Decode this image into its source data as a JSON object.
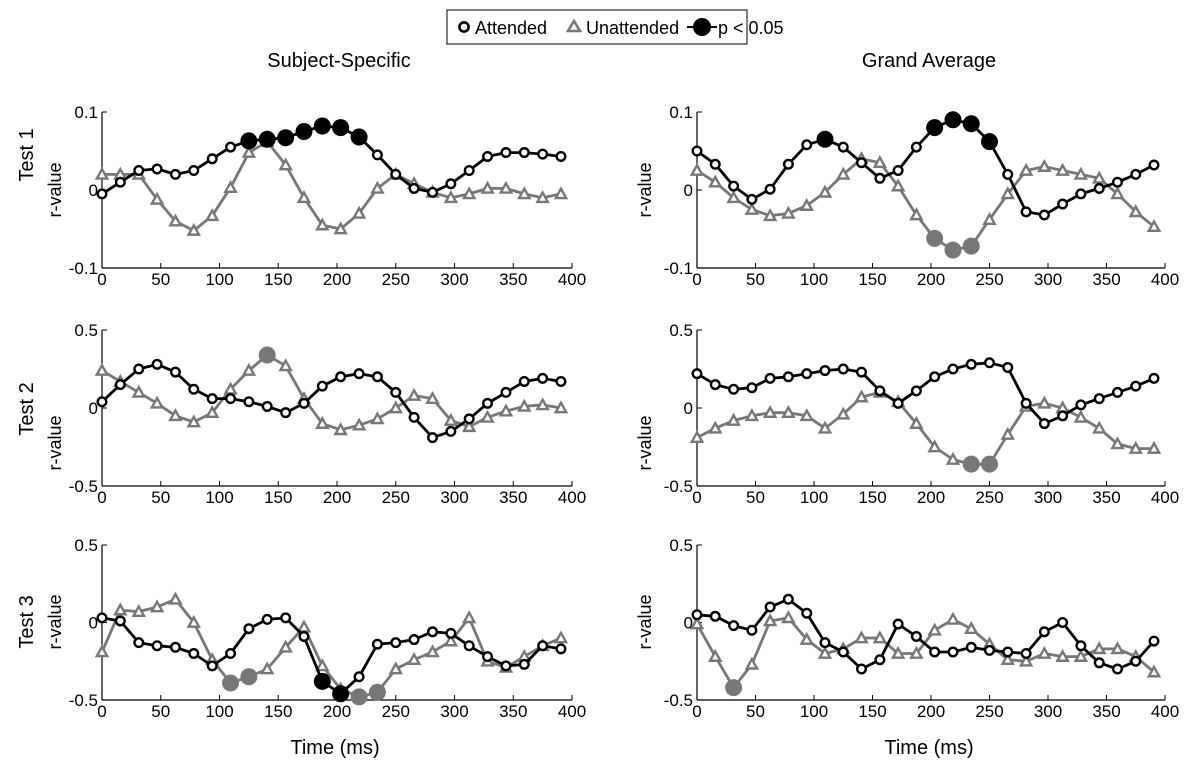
{
  "legend": {
    "attended": "Attended",
    "unattended": "Unattended",
    "significant": "p < 0.05"
  },
  "columns": [
    "Subject-Specific",
    "Grand Average"
  ],
  "rows": [
    "Test 1",
    "Test 2",
    "Test 3"
  ],
  "xlabel": "Time (ms)",
  "ylabel": "r-value",
  "colors": {
    "attended": "#000000",
    "unattended": "#777777"
  },
  "chart_data": [
    {
      "type": "line",
      "row": "Test 1",
      "column": "Subject-Specific",
      "ylim": [
        -0.1,
        0.1
      ],
      "yticks": [
        "-0.1",
        "0",
        "0.1"
      ],
      "xlim": [
        0,
        400
      ],
      "xticks": [
        "0",
        "50",
        "100",
        "150",
        "200",
        "250",
        "300",
        "350",
        "400"
      ],
      "x": [
        0,
        15.6,
        31.3,
        46.9,
        62.5,
        78.1,
        93.8,
        109.4,
        125,
        140.6,
        156.3,
        171.9,
        187.5,
        203.1,
        218.8,
        234.4,
        250,
        265.6,
        281.3,
        296.9,
        312.5,
        328.1,
        343.8,
        359.4,
        375,
        390.6
      ],
      "series": [
        {
          "name": "Attended",
          "values": [
            -0.005,
            0.01,
            0.025,
            0.027,
            0.02,
            0.025,
            0.04,
            0.055,
            0.063,
            0.065,
            0.067,
            0.075,
            0.082,
            0.08,
            0.068,
            0.045,
            0.02,
            0.002,
            -0.003,
            0.008,
            0.025,
            0.043,
            0.048,
            0.048,
            0.046,
            0.043
          ],
          "significant": [
            8,
            9,
            10,
            11,
            12,
            13,
            14
          ]
        },
        {
          "name": "Unattended",
          "values": [
            0.02,
            0.02,
            0.02,
            -0.012,
            -0.04,
            -0.052,
            -0.033,
            0.003,
            0.048,
            0.062,
            0.032,
            -0.01,
            -0.045,
            -0.05,
            -0.03,
            0.002,
            0.02,
            0.008,
            -0.003,
            -0.01,
            -0.005,
            0.002,
            0.002,
            -0.005,
            -0.01,
            -0.005
          ],
          "significant": []
        }
      ]
    },
    {
      "type": "line",
      "row": "Test 1",
      "column": "Grand Average",
      "ylim": [
        -0.1,
        0.1
      ],
      "yticks": [
        "-0.1",
        "0",
        "0.1"
      ],
      "xlim": [
        0,
        400
      ],
      "xticks": [
        "0",
        "50",
        "100",
        "150",
        "200",
        "250",
        "300",
        "350",
        "400"
      ],
      "x": [
        0,
        15.6,
        31.3,
        46.9,
        62.5,
        78.1,
        93.8,
        109.4,
        125,
        140.6,
        156.3,
        171.9,
        187.5,
        203.1,
        218.8,
        234.4,
        250,
        265.6,
        281.3,
        296.9,
        312.5,
        328.1,
        343.8,
        359.4,
        375,
        390.6
      ],
      "series": [
        {
          "name": "Attended",
          "values": [
            0.05,
            0.033,
            0.005,
            -0.012,
            0.001,
            0.033,
            0.058,
            0.065,
            0.055,
            0.035,
            0.015,
            0.025,
            0.055,
            0.08,
            0.09,
            0.085,
            0.062,
            0.02,
            -0.028,
            -0.032,
            -0.018,
            -0.005,
            0.002,
            0.01,
            0.02,
            0.032
          ],
          "significant": [
            7,
            13,
            14,
            15,
            16
          ]
        },
        {
          "name": "Unattended",
          "values": [
            0.025,
            0.01,
            -0.01,
            -0.025,
            -0.033,
            -0.03,
            -0.02,
            -0.003,
            0.02,
            0.04,
            0.035,
            0.005,
            -0.032,
            -0.062,
            -0.077,
            -0.072,
            -0.038,
            -0.005,
            0.025,
            0.03,
            0.025,
            0.02,
            0.015,
            -0.005,
            -0.028,
            -0.047
          ],
          "significant": [
            13,
            14,
            15
          ]
        }
      ]
    },
    {
      "type": "line",
      "row": "Test 2",
      "column": "Subject-Specific",
      "ylim": [
        -0.5,
        0.5
      ],
      "yticks": [
        "-0.5",
        "0",
        "0.5"
      ],
      "xlim": [
        0,
        400
      ],
      "xticks": [
        "0",
        "50",
        "100",
        "150",
        "200",
        "250",
        "300",
        "350",
        "400"
      ],
      "x": [
        0,
        15.6,
        31.3,
        46.9,
        62.5,
        78.1,
        93.8,
        109.4,
        125,
        140.6,
        156.3,
        171.9,
        187.5,
        203.1,
        218.8,
        234.4,
        250,
        265.6,
        281.3,
        296.9,
        312.5,
        328.1,
        343.8,
        359.4,
        375,
        390.6
      ],
      "series": [
        {
          "name": "Attended",
          "values": [
            0.04,
            0.15,
            0.25,
            0.28,
            0.23,
            0.12,
            0.06,
            0.06,
            0.04,
            0.01,
            -0.03,
            0.03,
            0.14,
            0.2,
            0.22,
            0.2,
            0.1,
            -0.06,
            -0.19,
            -0.15,
            -0.07,
            0.03,
            0.1,
            0.17,
            0.19,
            0.17
          ],
          "significant": []
        },
        {
          "name": "Unattended",
          "values": [
            0.24,
            0.17,
            0.1,
            0.03,
            -0.05,
            -0.09,
            -0.03,
            0.12,
            0.24,
            0.34,
            0.27,
            0.06,
            -0.1,
            -0.14,
            -0.11,
            -0.07,
            0.0,
            0.08,
            0.06,
            -0.08,
            -0.12,
            -0.06,
            -0.02,
            0.01,
            0.02,
            0.0
          ],
          "significant": [
            9
          ]
        }
      ]
    },
    {
      "type": "line",
      "row": "Test 2",
      "column": "Grand Average",
      "ylim": [
        -0.5,
        0.5
      ],
      "yticks": [
        "-0.5",
        "0",
        "0.5"
      ],
      "xlim": [
        0,
        400
      ],
      "xticks": [
        "0",
        "50",
        "100",
        "150",
        "200",
        "250",
        "300",
        "350",
        "400"
      ],
      "x": [
        0,
        15.6,
        31.3,
        46.9,
        62.5,
        78.1,
        93.8,
        109.4,
        125,
        140.6,
        156.3,
        171.9,
        187.5,
        203.1,
        218.8,
        234.4,
        250,
        265.6,
        281.3,
        296.9,
        312.5,
        328.1,
        343.8,
        359.4,
        375,
        390.6
      ],
      "series": [
        {
          "name": "Attended",
          "values": [
            0.22,
            0.15,
            0.12,
            0.13,
            0.19,
            0.2,
            0.22,
            0.24,
            0.25,
            0.23,
            0.11,
            0.03,
            0.11,
            0.2,
            0.25,
            0.28,
            0.29,
            0.26,
            0.03,
            -0.1,
            -0.05,
            0.02,
            0.06,
            0.1,
            0.14,
            0.19
          ],
          "significant": []
        },
        {
          "name": "Unattended",
          "values": [
            -0.19,
            -0.13,
            -0.08,
            -0.05,
            -0.03,
            -0.03,
            -0.05,
            -0.13,
            -0.04,
            0.07,
            0.1,
            0.04,
            -0.1,
            -0.25,
            -0.33,
            -0.36,
            -0.36,
            -0.17,
            0.01,
            0.03,
            0.0,
            -0.06,
            -0.13,
            -0.23,
            -0.26,
            -0.26
          ],
          "significant": [
            15,
            16
          ]
        }
      ]
    },
    {
      "type": "line",
      "row": "Test 3",
      "column": "Subject-Specific",
      "ylim": [
        -0.5,
        0.5
      ],
      "yticks": [
        "-0.5",
        "0",
        "0.5"
      ],
      "xlim": [
        0,
        400
      ],
      "xticks": [
        "0",
        "50",
        "100",
        "150",
        "200",
        "250",
        "300",
        "350",
        "400"
      ],
      "x": [
        0,
        15.6,
        31.3,
        46.9,
        62.5,
        78.1,
        93.8,
        109.4,
        125,
        140.6,
        156.3,
        171.9,
        187.5,
        203.1,
        218.8,
        234.4,
        250,
        265.6,
        281.3,
        296.9,
        312.5,
        328.1,
        343.8,
        359.4,
        375,
        390.6
      ],
      "series": [
        {
          "name": "Attended",
          "values": [
            0.03,
            0.01,
            -0.13,
            -0.15,
            -0.16,
            -0.2,
            -0.28,
            -0.2,
            -0.04,
            0.02,
            0.03,
            -0.09,
            -0.38,
            -0.46,
            -0.35,
            -0.14,
            -0.13,
            -0.11,
            -0.06,
            -0.07,
            -0.15,
            -0.22,
            -0.28,
            -0.27,
            -0.15,
            -0.17
          ],
          "significant": [
            12,
            13
          ]
        },
        {
          "name": "Unattended",
          "values": [
            -0.19,
            0.08,
            0.07,
            0.1,
            0.15,
            0.0,
            -0.24,
            -0.39,
            -0.35,
            -0.3,
            -0.16,
            -0.03,
            -0.28,
            -0.43,
            -0.48,
            -0.45,
            -0.3,
            -0.24,
            -0.19,
            -0.12,
            0.03,
            -0.25,
            -0.29,
            -0.22,
            -0.15,
            -0.1
          ],
          "significant": [
            7,
            8,
            14,
            15
          ]
        }
      ]
    },
    {
      "type": "line",
      "row": "Test 3",
      "column": "Grand Average",
      "ylim": [
        -0.5,
        0.5
      ],
      "yticks": [
        "-0.5",
        "0",
        "0.5"
      ],
      "xlim": [
        0,
        400
      ],
      "xticks": [
        "0",
        "50",
        "100",
        "150",
        "200",
        "250",
        "300",
        "350",
        "400"
      ],
      "x": [
        0,
        15.6,
        31.3,
        46.9,
        62.5,
        78.1,
        93.8,
        109.4,
        125,
        140.6,
        156.3,
        171.9,
        187.5,
        203.1,
        218.8,
        234.4,
        250,
        265.6,
        281.3,
        296.9,
        312.5,
        328.1,
        343.8,
        359.4,
        375,
        390.6
      ],
      "series": [
        {
          "name": "Attended",
          "values": [
            0.05,
            0.04,
            -0.02,
            -0.05,
            0.1,
            0.15,
            0.06,
            -0.13,
            -0.19,
            -0.3,
            -0.24,
            -0.01,
            -0.09,
            -0.19,
            -0.19,
            -0.16,
            -0.18,
            -0.19,
            -0.2,
            -0.06,
            0.0,
            -0.15,
            -0.26,
            -0.3,
            -0.25,
            -0.12
          ],
          "significant": []
        },
        {
          "name": "Unattended",
          "values": [
            -0.01,
            -0.22,
            -0.42,
            -0.27,
            0.01,
            0.03,
            -0.11,
            -0.2,
            -0.17,
            -0.1,
            -0.1,
            -0.2,
            -0.2,
            -0.05,
            0.02,
            -0.04,
            -0.14,
            -0.24,
            -0.25,
            -0.2,
            -0.22,
            -0.22,
            -0.17,
            -0.17,
            -0.22,
            -0.32
          ],
          "significant": [
            2
          ]
        }
      ]
    }
  ]
}
